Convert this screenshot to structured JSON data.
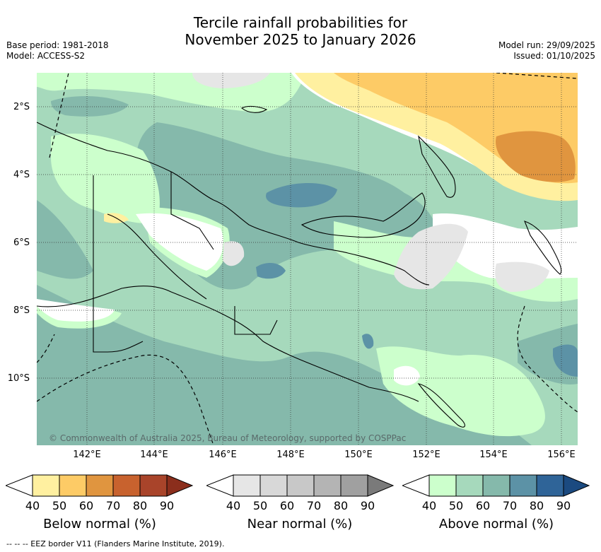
{
  "title_line1": "Tercile rainfall probabilities for",
  "title_line2": "November 2025 to January 2026",
  "base_period": "Base period: 1981-2018",
  "model": "Model: ACCESS-S2",
  "model_run": "Model run: 29/09/2025",
  "issued": "Issued: 01/10/2025",
  "copyright": "© Commonwealth of Australia 2025, Bureau of Meteorology, supported by COSPPac",
  "footnote": "-- -- -- EEZ border V11 (Flanders Marine Institute, 2019).",
  "lat_labels": [
    "2°S",
    "4°S",
    "6°S",
    "8°S",
    "10°S"
  ],
  "lon_labels": [
    "142°E",
    "144°E",
    "146°E",
    "148°E",
    "150°E",
    "152°E",
    "154°E",
    "156°E"
  ],
  "legends": [
    {
      "title": "Below normal (%)",
      "ticks": [
        "40",
        "50",
        "60",
        "70",
        "80",
        "90"
      ],
      "colors": [
        "#ffffff",
        "#fff0a0",
        "#fdcb66",
        "#e0953f",
        "#c8622e",
        "#a9442a",
        "#8b2e1c"
      ]
    },
    {
      "title": "Near normal (%)",
      "ticks": [
        "40",
        "50",
        "60",
        "70",
        "80",
        "90"
      ],
      "colors": [
        "#ffffff",
        "#e6e6e6",
        "#d8d8d8",
        "#c8c8c8",
        "#b4b4b4",
        "#a0a0a0",
        "#7a7a7a"
      ]
    },
    {
      "title": "Above normal (%)",
      "ticks": [
        "40",
        "50",
        "60",
        "70",
        "80",
        "90"
      ],
      "colors": [
        "#ffffff",
        "#ccffcc",
        "#a6d9bc",
        "#85b9ab",
        "#5c92a6",
        "#2f6498",
        "#1b4a80"
      ]
    }
  ]
}
